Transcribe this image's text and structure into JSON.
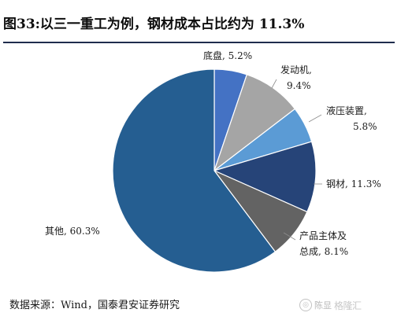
{
  "header": {
    "title": "图33:以三一重工为例，钢材成本占比约为 11.3%"
  },
  "chart_data": {
    "type": "pie",
    "slices": [
      {
        "name": "底盘",
        "value": 5.2,
        "color": "#4472c4",
        "label": [
          "底盘, 5.2%"
        ]
      },
      {
        "name": "发动机",
        "value": 9.4,
        "color": "#a5a5a5",
        "label": [
          "发动机,",
          "9.4%"
        ]
      },
      {
        "name": "液压装置",
        "value": 5.8,
        "color": "#5b9bd5",
        "label": [
          "液压装置,",
          "5.8%"
        ]
      },
      {
        "name": "钢材",
        "value": 11.3,
        "color": "#264478",
        "label": [
          "钢材, 11.3%"
        ]
      },
      {
        "name": "产品主体及总成",
        "value": 8.1,
        "color": "#636363",
        "label": [
          "产品主体及",
          "总成, 8.1%"
        ]
      },
      {
        "name": "其他",
        "value": 60.3,
        "color": "#255e91",
        "label": [
          "其他, 60.3%"
        ]
      }
    ]
  },
  "footer": {
    "source": "数据来源：Wind，国泰君安证券研究",
    "watermark_text": "陈显",
    "watermark_logo": "格隆汇"
  }
}
